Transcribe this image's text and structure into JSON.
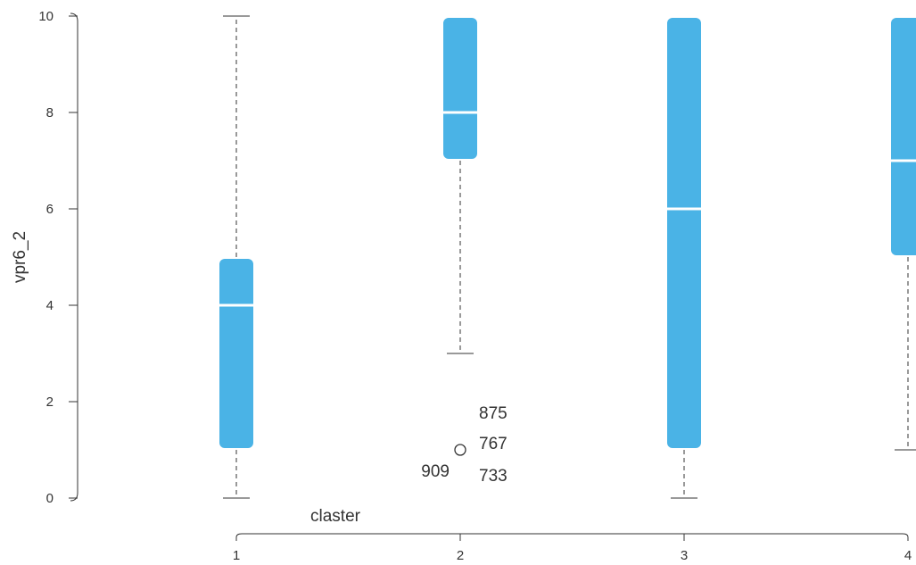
{
  "chart_data": {
    "type": "boxplot",
    "title": "",
    "xlabel": "claster",
    "ylabel": "vpr6_2",
    "categories": [
      "1",
      "2",
      "3",
      "4"
    ],
    "ylim": [
      0,
      10
    ],
    "yticks": [
      "0",
      "2",
      "4",
      "6",
      "8",
      "10"
    ],
    "grid": false,
    "box_color": "#4AB3E6",
    "boxes": [
      {
        "category": "1",
        "whisker_low": 0,
        "q1": 1,
        "median": 4,
        "q3": 5,
        "whisker_high": 10
      },
      {
        "category": "2",
        "whisker_low": 3,
        "q1": 7,
        "median": 8,
        "q3": 10,
        "whisker_high": 10
      },
      {
        "category": "3",
        "whisker_low": 0,
        "q1": 1,
        "median": 6,
        "q3": 10,
        "whisker_high": 10
      },
      {
        "category": "4",
        "whisker_low": 1,
        "q1": 5,
        "median": 7,
        "q3": 10,
        "whisker_high": 10
      }
    ],
    "outliers": [
      {
        "category": "2",
        "value": 1,
        "labels_left": [
          "909"
        ],
        "labels_right": [
          "875",
          "767",
          "733"
        ]
      }
    ]
  }
}
